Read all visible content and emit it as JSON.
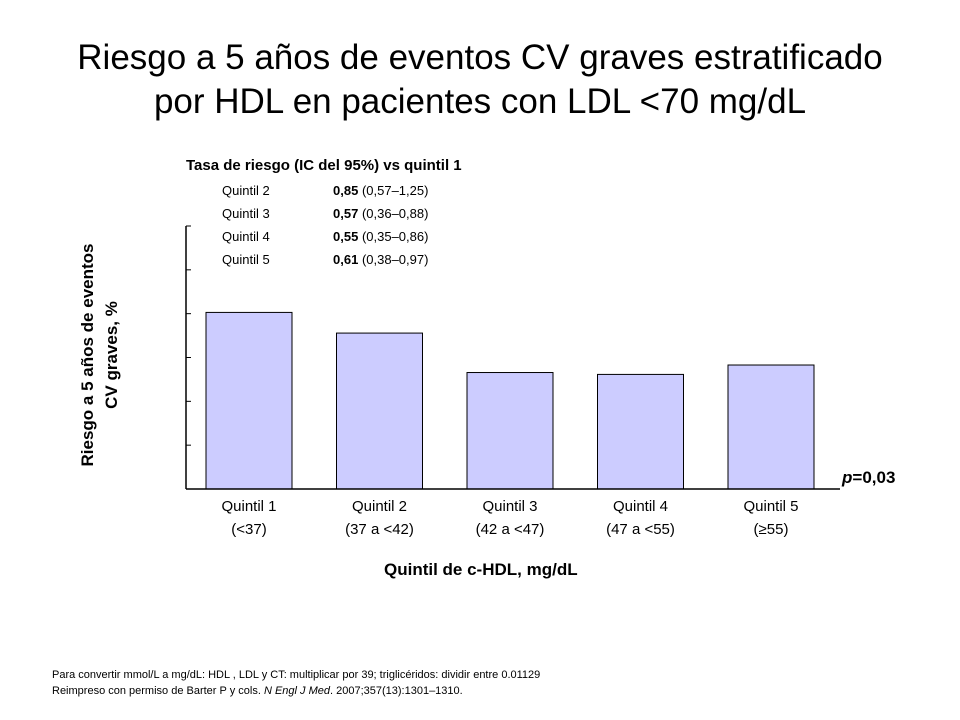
{
  "title": {
    "line1": "Riesgo a 5 años de eventos CV graves estratificado",
    "line2": "por HDL en pacientes con LDL <70 mg/dL"
  },
  "hazard_ratios": {
    "heading": "Tasa de riesgo (IC del 95%) vs quintil 1",
    "rows": [
      {
        "quintile": "Quintil 2",
        "value": "0,85",
        "ci": "(0,57–1,25)"
      },
      {
        "quintile": "Quintil 3",
        "value": "0,57",
        "ci": "(0,36–0,88)"
      },
      {
        "quintile": "Quintil 4",
        "value": "0,55",
        "ci": "(0,35–0,86)"
      },
      {
        "quintile": "Quintil 5",
        "value": "0,61",
        "ci": "(0,38–0,97)"
      }
    ]
  },
  "p_value": {
    "prefix": "p",
    "text": "=0,03"
  },
  "footnote": {
    "line1": "Para convertir mmol/L a mg/dL: HDL , LDL y CT: multiplicar por 39; triglicéridos: dividir entre 0.01129",
    "line2_prefix": "Reimpreso con permiso de Barter P y cols. ",
    "line2_journal": "N Engl J Med",
    "line2_suffix": ". 2007;357(13):1301–1310."
  },
  "chart_data": {
    "type": "bar",
    "title": "",
    "ylabel_line1": "Riesgo a 5 años de eventos",
    "ylabel_line2": "CV graves, %",
    "xlabel": "Quintil de c-HDL, mg/dL",
    "categories": [
      {
        "line1": "Quintil 1",
        "line2": "(<37)"
      },
      {
        "line1": "Quintil 2",
        "line2": "(37 a <42)"
      },
      {
        "line1": "Quintil 3",
        "line2": "(42 a <47)"
      },
      {
        "line1": "Quintil 4",
        "line2": "(47 a <55)"
      },
      {
        "line1": "Quintil 5",
        "line2": "(≥55)"
      }
    ],
    "values": [
      9.4,
      8.3,
      6.2,
      6.1,
      6.6
    ],
    "ylim": [
      0,
      14
    ],
    "tick_count": 7,
    "tick_labels_shown": false,
    "grid": false,
    "bar_color": "#ccccff",
    "bar_edge_color": "#000000"
  }
}
